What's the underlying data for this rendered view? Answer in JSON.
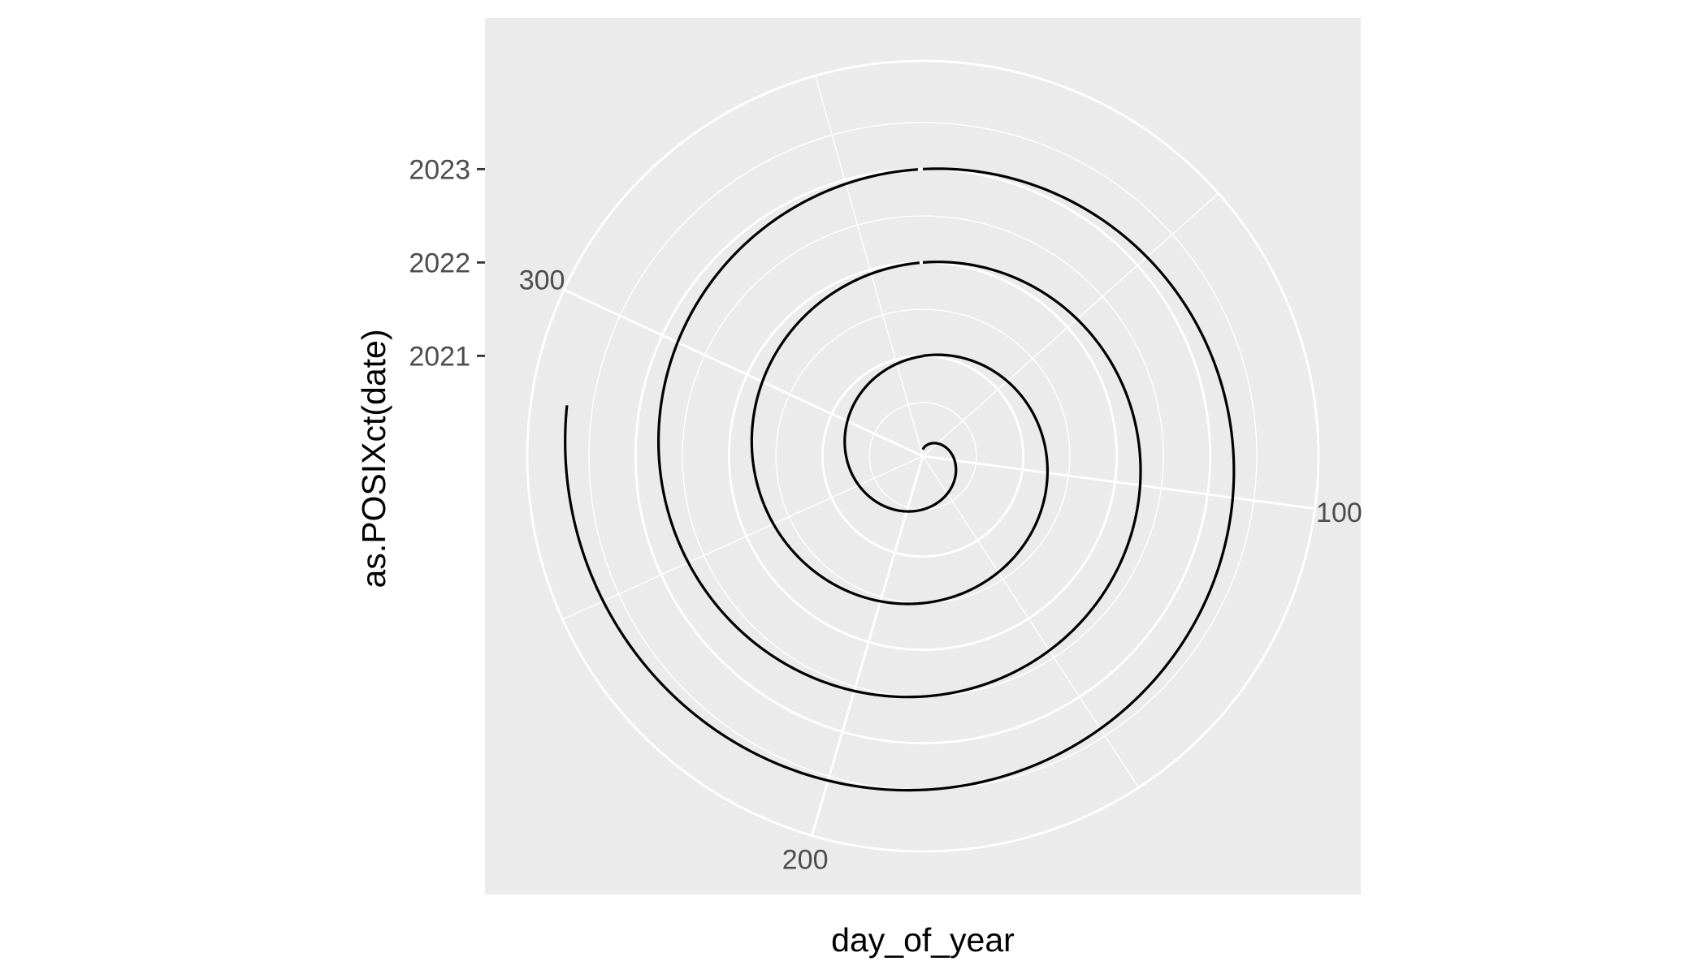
{
  "chart_data": {
    "type": "line",
    "coord": "polar",
    "xlabel": "day_of_year",
    "ylabel": "as.POSIXct(date)",
    "x_range": [
      1,
      366
    ],
    "x_ticks": [
      100,
      200,
      300
    ],
    "x_tick_labels": [
      "100",
      "200",
      "300"
    ],
    "y_range": [
      "2019-12-06",
      "2024-02-28"
    ],
    "y_ticks": [
      "2021-01-01",
      "2022-01-01",
      "2023-01-01"
    ],
    "y_tick_labels": [
      "2021",
      "2022",
      "2023"
    ],
    "grid": true,
    "panel_background": "#EBEBEB",
    "grid_color": "#FFFFFF",
    "series": [
      {
        "color": "#000000",
        "start": "2020-01-01",
        "end": "2023-10-10",
        "x": "day_of_year",
        "y": "date"
      }
    ]
  }
}
